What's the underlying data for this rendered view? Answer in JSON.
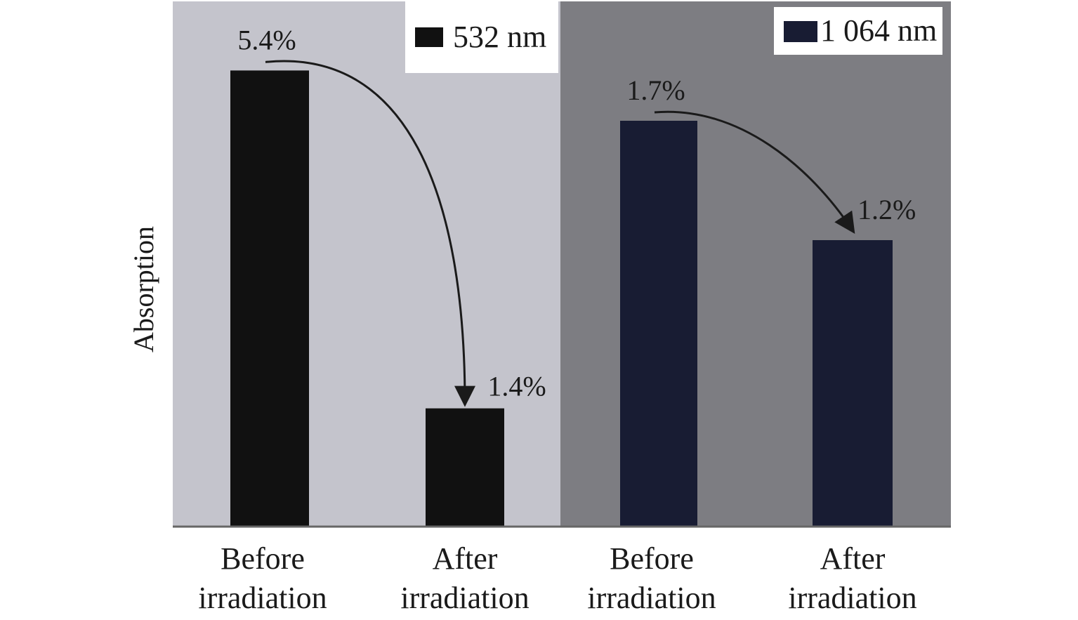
{
  "chart_data": {
    "type": "bar",
    "ylabel": "Absorption",
    "categories": [
      "Before\nirradiation",
      "After\nirradiation"
    ],
    "panels": [
      {
        "legend": "532 nm",
        "color": "#111111",
        "background": "#c4c4cc",
        "values": [
          5.4,
          1.4
        ],
        "value_labels": [
          "5.4%",
          "1.4%"
        ]
      },
      {
        "legend": "1 064 nm",
        "color": "#181c33",
        "background": "#7d7d82",
        "values": [
          1.7,
          1.2
        ],
        "value_labels": [
          "1.7%",
          "1.2%"
        ]
      }
    ],
    "grid": false,
    "legend_position": "top-right of each panel",
    "annotation": "curved arrows from the before bar to the after bar in each panel"
  }
}
